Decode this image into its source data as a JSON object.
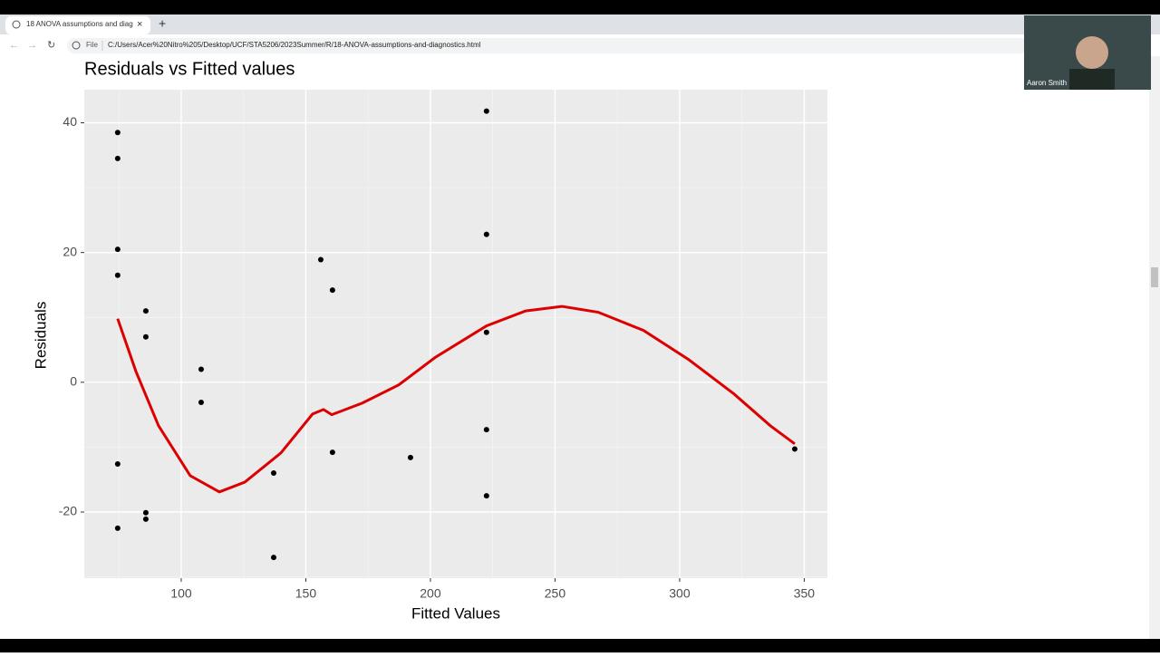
{
  "browser": {
    "tab_title": "18 ANOVA assumptions and diag",
    "file_label": "File",
    "url": "C:/Users/Acer%20Nitro%205/Desktop/UCF/STA5206/2023Summer/R/18-ANOVA-assumptions-and-diagnostics.html"
  },
  "webcam": {
    "name": "Aaron Smith"
  },
  "chart_data": {
    "type": "scatter",
    "title": "Residuals vs Fitted values",
    "x_label": "Fitted Values",
    "y_label": "Residuals",
    "xlim": [
      61.1,
      359.3
    ],
    "ylim": [
      -30.2,
      45.1
    ],
    "xticks": [
      100,
      150,
      200,
      250,
      300,
      350
    ],
    "yticks": [
      -20,
      0,
      20,
      40
    ],
    "grid": true,
    "points": {
      "color": "#000000",
      "x": [
        74.5,
        74.5,
        74.5,
        74.5,
        74.5,
        74.5,
        85.8,
        85.8,
        85.8,
        85.8,
        108,
        108,
        137.1,
        137.1,
        156,
        160.7,
        160.7,
        192,
        222.5,
        222.5,
        222.5,
        222.5,
        222.5,
        346.2
      ],
      "y": [
        38.5,
        34.5,
        20.5,
        16.5,
        -12.6,
        -22.5,
        11,
        7,
        -20.1,
        -21.1,
        2,
        -3.1,
        -14,
        -27,
        18.9,
        14.2,
        -10.8,
        -11.6,
        41.8,
        22.8,
        7.7,
        -7.3,
        -17.5,
        -10.3
      ]
    },
    "smooth": {
      "color": "#dd0000",
      "x": [
        74.5,
        81.8,
        90.9,
        103.6,
        115.3,
        125.5,
        140,
        152.7,
        157.1,
        160.4,
        172.7,
        187.3,
        201.8,
        222.5,
        238.2,
        252.7,
        267.3,
        285.5,
        303.6,
        321.8,
        336.4,
        346.2
      ],
      "y": [
        9.8,
        1.7,
        -6.7,
        -14.4,
        -16.9,
        -15.4,
        -10.9,
        -4.9,
        -4.2,
        -5,
        -3.2,
        -0.4,
        3.8,
        8.7,
        11,
        11.7,
        10.8,
        8,
        3.5,
        -1.8,
        -6.7,
        -9.5
      ]
    }
  }
}
